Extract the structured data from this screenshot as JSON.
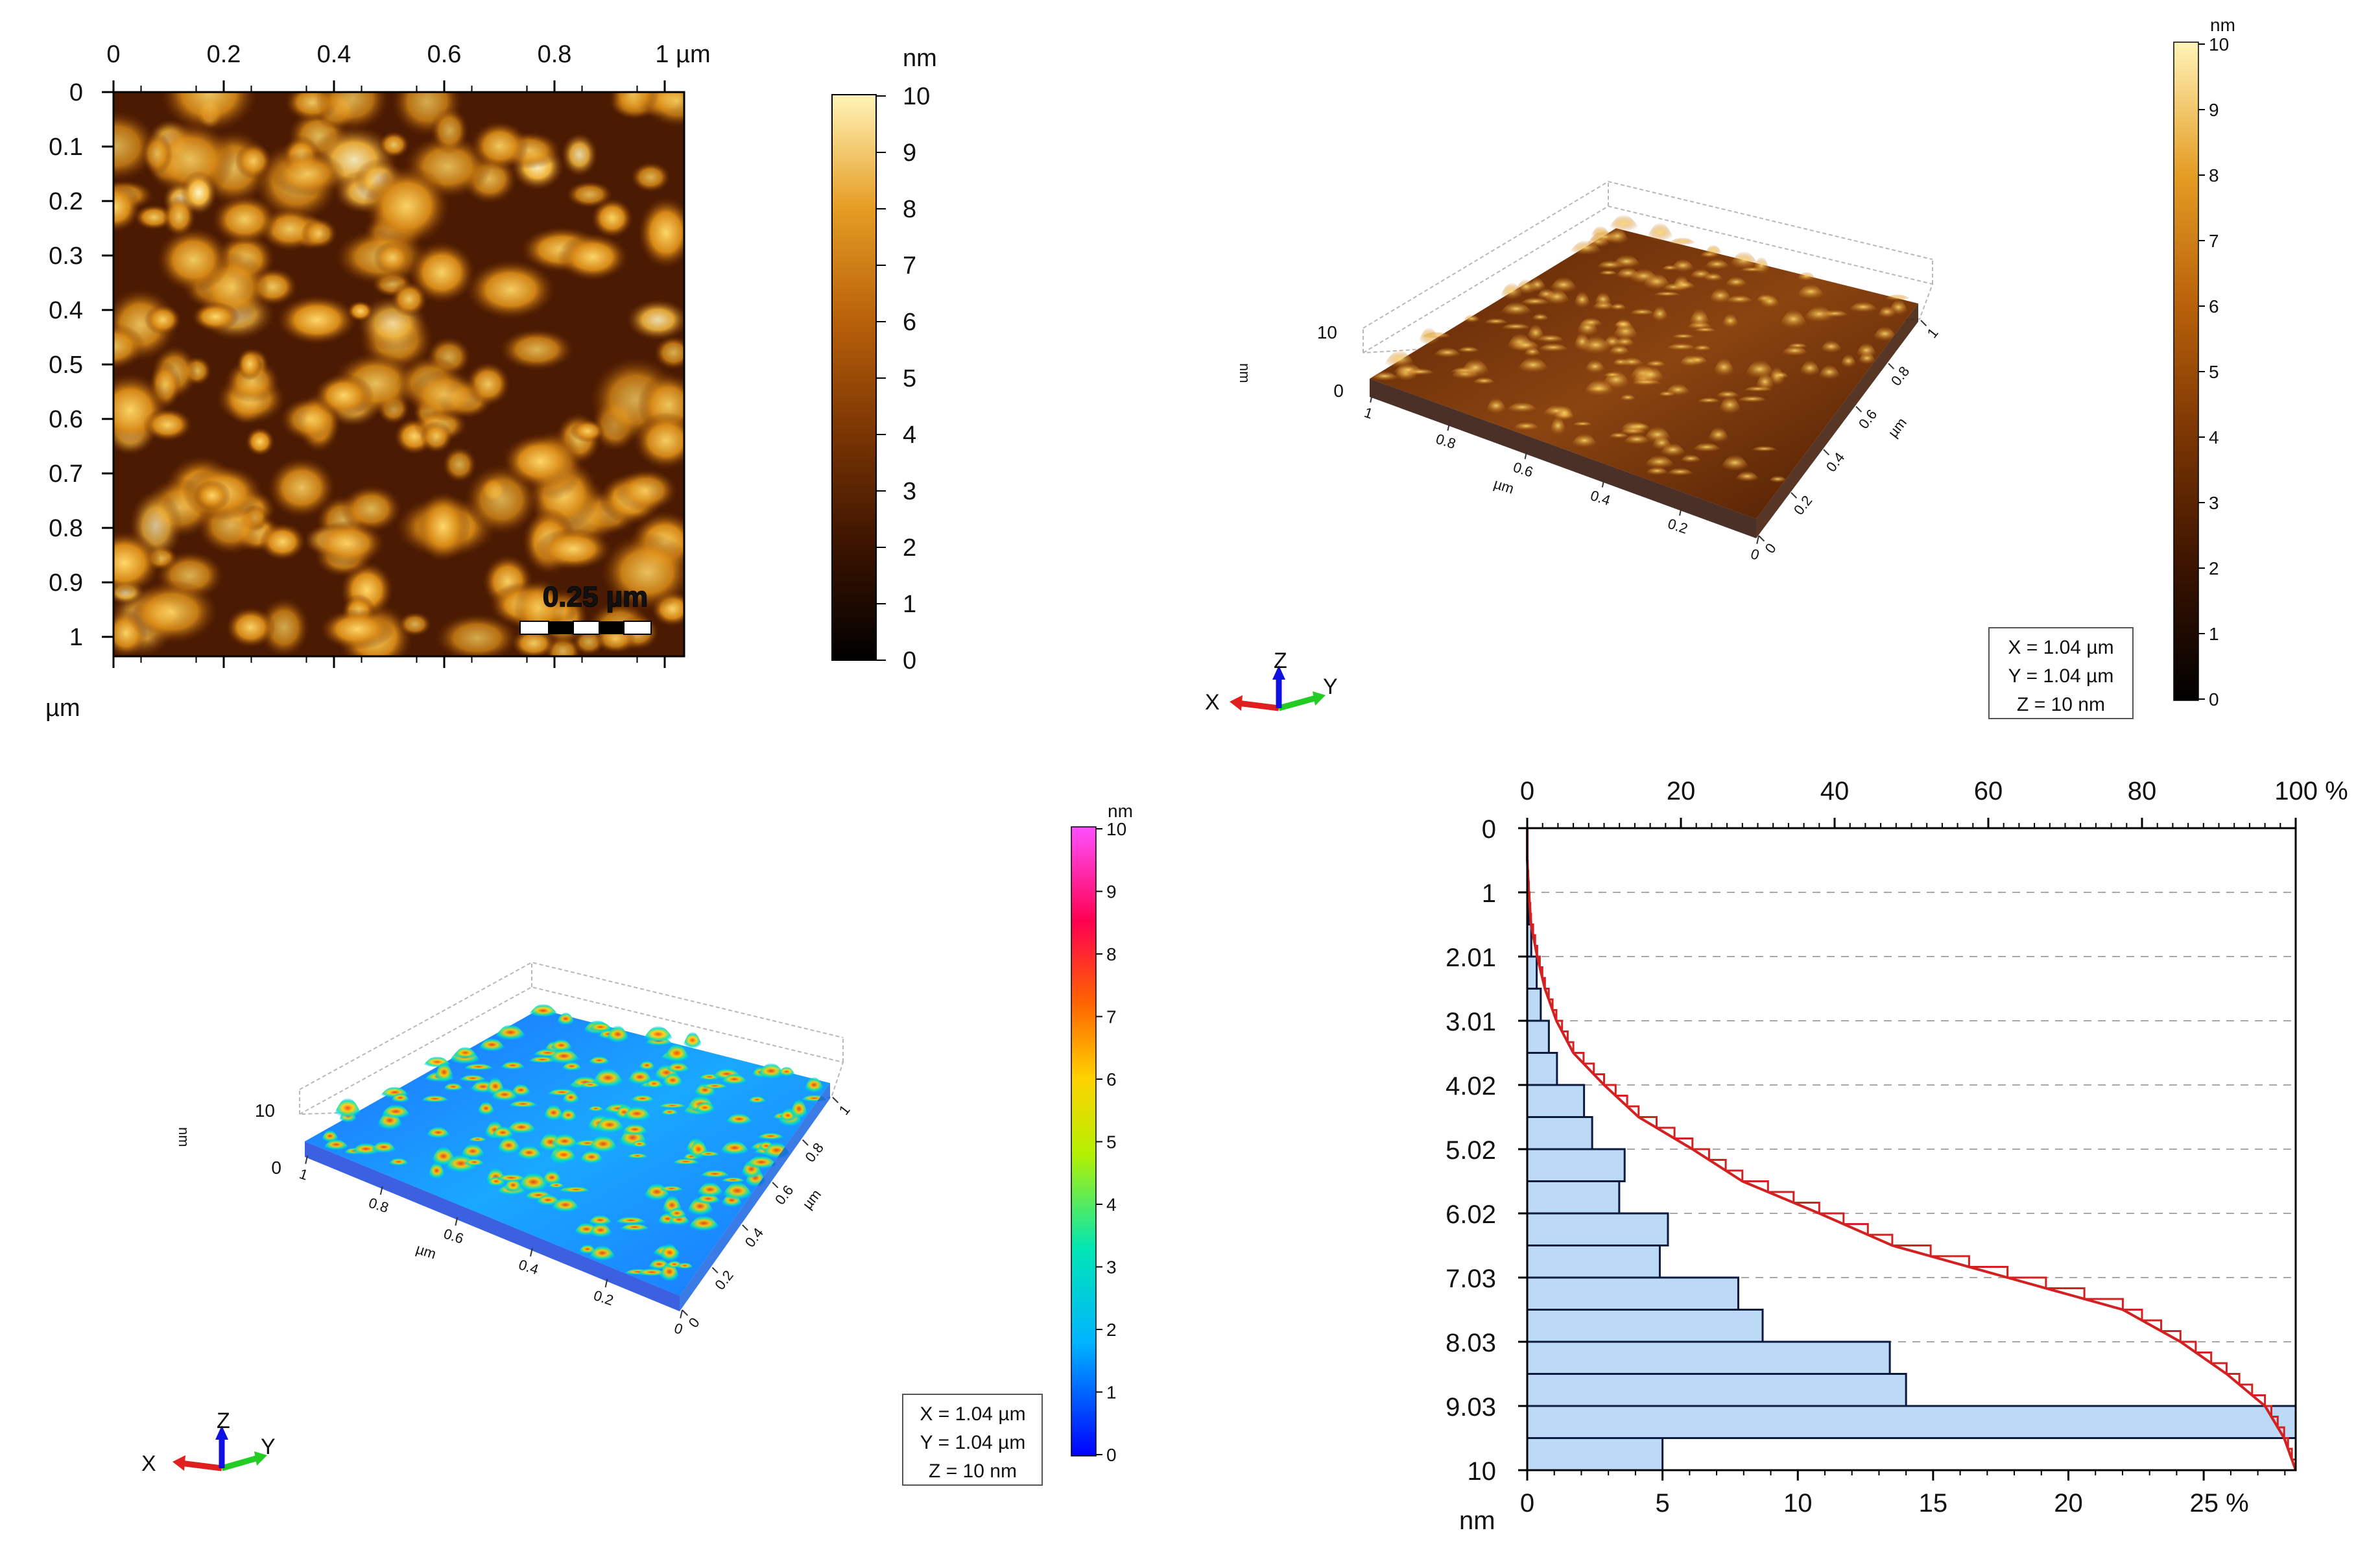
{
  "panels": {
    "topography_2d": {
      "x_ticks": [
        "0",
        "0.2",
        "0.4",
        "0.6",
        "0.8",
        "1 µm"
      ],
      "y_ticks": [
        "0",
        "0.1",
        "0.2",
        "0.3",
        "0.4",
        "0.5",
        "0.6",
        "0.7",
        "0.8",
        "0.9",
        "1"
      ],
      "y_unit": "µm",
      "scale_bar_label": "0.25 µm",
      "colorbar": {
        "unit": "nm",
        "ticks": [
          "10",
          "9",
          "8",
          "7",
          "6",
          "5",
          "4",
          "3",
          "2",
          "1",
          "0"
        ],
        "colors": [
          "#000000",
          "#3a1300",
          "#7a3503",
          "#b8610a",
          "#e59d24",
          "#fff4b8"
        ]
      }
    },
    "view_3d_gold": {
      "z_axis_label": "nm",
      "z_ticks": [
        "10",
        "0"
      ],
      "x_ticks": [
        "1",
        "0.8",
        "0.6",
        "0.4",
        "0.2",
        "0"
      ],
      "x_unit": "µm",
      "y_ticks": [
        "0",
        "0.2",
        "0.4",
        "0.6",
        "0.8",
        "1"
      ],
      "y_unit": "µm",
      "info": {
        "x": "X = 1.04 µm",
        "y": "Y = 1.04 µm",
        "z": "Z = 10 nm"
      },
      "axes_labels": {
        "x": "X",
        "y": "Y",
        "z": "Z"
      },
      "colorbar": {
        "unit": "nm",
        "ticks": [
          "10",
          "9",
          "8",
          "7",
          "6",
          "5",
          "4",
          "3",
          "2",
          "1",
          "0"
        ]
      }
    },
    "view_3d_rainbow": {
      "z_axis_label": "nm",
      "z_ticks": [
        "10",
        "0"
      ],
      "x_ticks": [
        "1",
        "0.8",
        "0.6",
        "0.4",
        "0.2",
        "0"
      ],
      "x_unit": "µm",
      "y_ticks": [
        "0",
        "0.2",
        "0.4",
        "0.6",
        "0.8",
        "1"
      ],
      "y_unit": "µm",
      "info": {
        "x": "X = 1.04 µm",
        "y": "Y = 1.04 µm",
        "z": "Z = 10 nm"
      },
      "axes_labels": {
        "x": "X",
        "y": "Y",
        "z": "Z"
      },
      "colorbar": {
        "unit": "nm",
        "ticks": [
          "10",
          "9",
          "8",
          "7",
          "6",
          "5",
          "4",
          "3",
          "2",
          "1",
          "0"
        ],
        "colors": [
          "#0000ff",
          "#00b4ff",
          "#00e6b4",
          "#b4f000",
          "#ffd200",
          "#ff6400",
          "#ff0050",
          "#ff50ff"
        ]
      }
    }
  },
  "chart_data": {
    "type": "bar",
    "orientation": "horizontal",
    "bin_labels": [
      "0",
      "1",
      "2.01",
      "3.01",
      "4.02",
      "5.02",
      "6.02",
      "7.03",
      "8.03",
      "9.03",
      "10"
    ],
    "y_unit": "nm",
    "bins": [
      {
        "from": 0.0,
        "to": 0.5,
        "pct": 0.0
      },
      {
        "from": 0.5,
        "to": 1.0,
        "pct": 0.0
      },
      {
        "from": 1.0,
        "to": 1.5,
        "pct": 0.05
      },
      {
        "from": 1.5,
        "to": 2.0,
        "pct": 0.15
      },
      {
        "from": 2.0,
        "to": 2.5,
        "pct": 0.35
      },
      {
        "from": 2.5,
        "to": 3.0,
        "pct": 0.5
      },
      {
        "from": 3.0,
        "to": 3.5,
        "pct": 0.8
      },
      {
        "from": 3.5,
        "to": 4.0,
        "pct": 1.1
      },
      {
        "from": 4.0,
        "to": 4.5,
        "pct": 2.1
      },
      {
        "from": 4.5,
        "to": 5.0,
        "pct": 2.4
      },
      {
        "from": 5.0,
        "to": 5.5,
        "pct": 3.6
      },
      {
        "from": 5.5,
        "to": 6.0,
        "pct": 3.4
      },
      {
        "from": 6.0,
        "to": 6.5,
        "pct": 5.2
      },
      {
        "from": 6.5,
        "to": 7.0,
        "pct": 4.9
      },
      {
        "from": 7.0,
        "to": 7.5,
        "pct": 7.8
      },
      {
        "from": 7.5,
        "to": 8.0,
        "pct": 8.7
      },
      {
        "from": 8.0,
        "to": 8.5,
        "pct": 13.4
      },
      {
        "from": 8.5,
        "to": 9.0,
        "pct": 14.0
      },
      {
        "from": 9.0,
        "to": 9.5,
        "pct": 28.4
      },
      {
        "from": 9.5,
        "to": 10.0,
        "pct": 5.0
      }
    ],
    "cumulative_pct": [
      0,
      0,
      0.2,
      0.5,
      1.3,
      2.3,
      3.8,
      6.0,
      10.0,
      14.5,
      21.5,
      28.0,
      38.0,
      47.5,
      62.5,
      77.5,
      85.0,
      91.0,
      96.0,
      98.5,
      100
    ],
    "bottom_axis": {
      "ticks": [
        "0",
        "5",
        "10",
        "15",
        "20",
        "25 %"
      ],
      "range": [
        0,
        28.4
      ]
    },
    "top_axis": {
      "ticks": [
        "0",
        "20",
        "40",
        "60",
        "80",
        "100 %"
      ],
      "range": [
        0,
        100
      ]
    },
    "y_range": [
      0,
      10
    ],
    "grid": "dashed horizontal",
    "bar_color": "#bcdaf5",
    "curve_color": "#d42020"
  }
}
